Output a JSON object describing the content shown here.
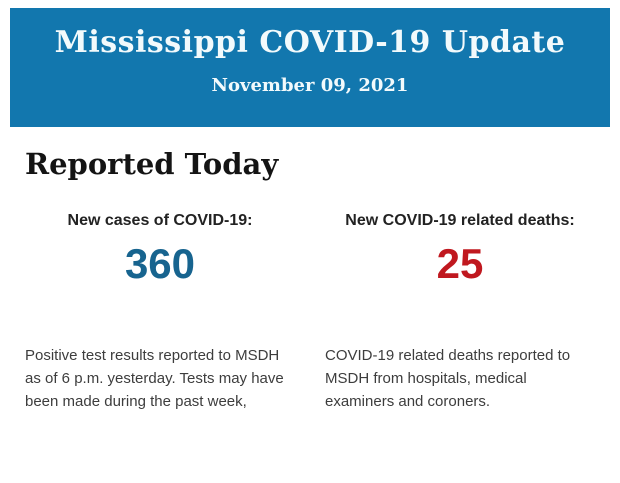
{
  "banner": {
    "title": "Mississippi COVID-19 Update",
    "date": "November 09, 2021",
    "background_color": "#1277ae",
    "text_color": "#f2fafc"
  },
  "section": {
    "heading": "Reported Today",
    "heading_color": "#141414"
  },
  "stats": [
    {
      "label": "New cases of COVID-19:",
      "value": "360",
      "value_color": "#17648f",
      "description": "Positive test results reported to MSDH as of 6 p.m. yesterday. Tests may have been made during the past week,"
    },
    {
      "label": "New COVID-19 related deaths:",
      "value": "25",
      "value_color": "#c0181f",
      "description": "COVID-19 related deaths reported to MSDH from hospitals, medical examiners and coroners."
    }
  ]
}
